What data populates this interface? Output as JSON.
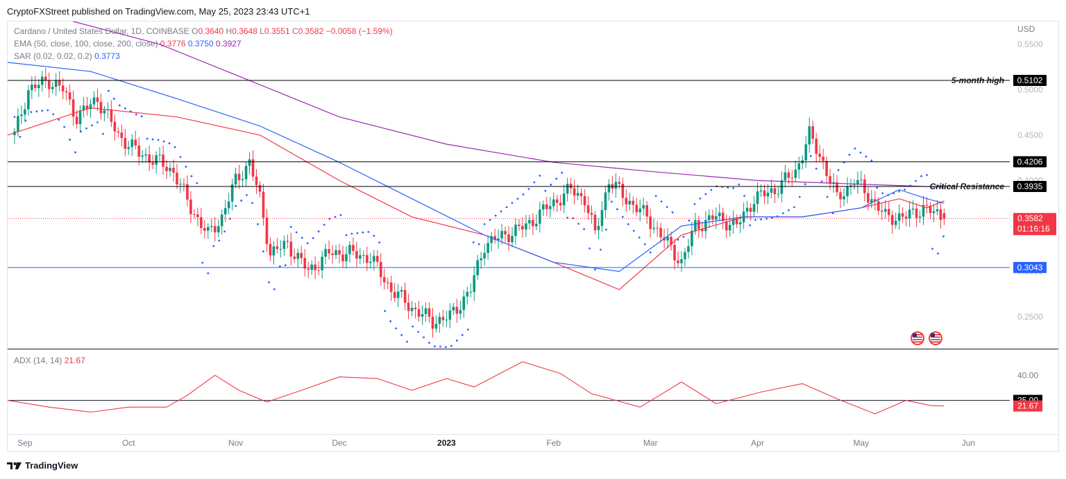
{
  "publisher_line": "CryptoFXStreet published on TradingView.com, May 25, 2023 23:43 UTC+1",
  "symbol": {
    "name": "Cardano / United States Dollar, 1D, COINBASE",
    "open_label": "O",
    "open": "0.3640",
    "high_label": "H",
    "high": "0.3648",
    "low_label": "L",
    "low": "0.3551",
    "close_label": "C",
    "close": "0.3582",
    "change": "−0.0058 (−1.59%)"
  },
  "ema_legend": {
    "label": "EMA (50, close, 100, close, 200, close)",
    "ema50": "0.3776",
    "ema100": "0.3750",
    "ema200": "0.3927"
  },
  "sar_legend": {
    "label": "SAR (0.02, 0.02, 0.2)",
    "value": "0.3773"
  },
  "adx_legend": {
    "label": "ADX (14, 14)",
    "value": "21.67"
  },
  "branding": "TradingView",
  "colors": {
    "bull": "#089981",
    "bear": "#f23645",
    "ema50": "#f23645",
    "ema100": "#2962ff",
    "ema200": "#9c27b0",
    "sar": "#2962ff",
    "support": "#2962ff",
    "adx": "#f23645"
  },
  "chart_data": [
    {
      "type": "candlestick",
      "title": "Cardano / United States Dollar, 1D, COINBASE",
      "currency_label": "USD",
      "y_ticks": [
        "0.5500",
        "0.5000",
        "0.4500",
        "0.4000",
        "0.3500",
        "0.3000",
        "0.2500"
      ],
      "ylim": [
        0.215,
        0.575
      ],
      "x_ticks": [
        "Sep",
        "Oct",
        "Nov",
        "Dec",
        "2023",
        "Feb",
        "Mar",
        "Apr",
        "May",
        "Jun"
      ],
      "x_range": [
        "2022-08-27",
        "2023-06-13"
      ],
      "horizontal_levels": [
        {
          "value": 0.5102,
          "label": "0.5102",
          "annotation": "5-month high",
          "color": "#000000"
        },
        {
          "value": 0.4206,
          "label": "0.4206",
          "annotation": "",
          "color": "#000000"
        },
        {
          "value": 0.3935,
          "label": "0.3935",
          "annotation": "Critical Resistance",
          "color": "#000000"
        },
        {
          "value": 0.3043,
          "label": "0.3043",
          "annotation": "",
          "color": "#2962ff"
        }
      ],
      "last_price": {
        "value": 0.3582,
        "label": "0.3582",
        "countdown": "01:16:16"
      },
      "close_path": [
        [
          "2022-08-29",
          0.45
        ],
        [
          "2022-09-02",
          0.5
        ],
        [
          "2022-09-08",
          0.51
        ],
        [
          "2022-09-12",
          0.5
        ],
        [
          "2022-09-16",
          0.47
        ],
        [
          "2022-09-22",
          0.49
        ],
        [
          "2022-09-28",
          0.45
        ],
        [
          "2022-10-04",
          0.43
        ],
        [
          "2022-10-10",
          0.42
        ],
        [
          "2022-10-14",
          0.41
        ],
        [
          "2022-10-19",
          0.37
        ],
        [
          "2022-10-24",
          0.34
        ],
        [
          "2022-10-28",
          0.36
        ],
        [
          "2022-11-01",
          0.4
        ],
        [
          "2022-11-05",
          0.42
        ],
        [
          "2022-11-08",
          0.38
        ],
        [
          "2022-11-11",
          0.32
        ],
        [
          "2022-11-16",
          0.33
        ],
        [
          "2022-11-22",
          0.3
        ],
        [
          "2022-11-28",
          0.32
        ],
        [
          "2022-12-04",
          0.32
        ],
        [
          "2022-12-10",
          0.315
        ],
        [
          "2022-12-16",
          0.28
        ],
        [
          "2022-12-22",
          0.26
        ],
        [
          "2022-12-28",
          0.245
        ],
        [
          "2023-01-02",
          0.25
        ],
        [
          "2023-01-08",
          0.28
        ],
        [
          "2023-01-12",
          0.33
        ],
        [
          "2023-01-18",
          0.34
        ],
        [
          "2023-01-24",
          0.35
        ],
        [
          "2023-01-30",
          0.37
        ],
        [
          "2023-02-06",
          0.39
        ],
        [
          "2023-02-10",
          0.38
        ],
        [
          "2023-02-13",
          0.34
        ],
        [
          "2023-02-17",
          0.4
        ],
        [
          "2023-02-22",
          0.38
        ],
        [
          "2023-02-28",
          0.36
        ],
        [
          "2023-03-04",
          0.34
        ],
        [
          "2023-03-10",
          0.31
        ],
        [
          "2023-03-14",
          0.35
        ],
        [
          "2023-03-20",
          0.36
        ],
        [
          "2023-03-26",
          0.35
        ],
        [
          "2023-03-31",
          0.38
        ],
        [
          "2023-04-06",
          0.39
        ],
        [
          "2023-04-12",
          0.41
        ],
        [
          "2023-04-16",
          0.45
        ],
        [
          "2023-04-20",
          0.42
        ],
        [
          "2023-04-24",
          0.38
        ],
        [
          "2023-04-29",
          0.4
        ],
        [
          "2023-05-04",
          0.38
        ],
        [
          "2023-05-08",
          0.36
        ],
        [
          "2023-05-14",
          0.36
        ],
        [
          "2023-05-19",
          0.37
        ],
        [
          "2023-05-25",
          0.3582
        ]
      ],
      "series": [
        {
          "name": "EMA 50",
          "values": [
            [
              0.45,
              0.48,
              0.47,
              0.45,
              0.4,
              0.36,
              0.34,
              0.31,
              0.28,
              0.34,
              0.36,
              0.36,
              0.37,
              0.38,
              0.37,
              0.3776
            ]
          ]
        },
        {
          "name": "EMA 100",
          "values": [
            [
              0.53,
              0.52,
              0.49,
              0.46,
              0.42,
              0.38,
              0.34,
              0.31,
              0.3,
              0.35,
              0.36,
              0.36,
              0.37,
              0.39,
              0.38,
              0.375
            ]
          ]
        },
        {
          "name": "EMA 200",
          "values": [
            [
              0.58,
              0.55,
              0.51,
              0.47,
              0.44,
              0.42,
              0.41,
              0.4,
              0.3927
            ]
          ]
        }
      ],
      "ema_dates": [
        "2022-08-27",
        "2022-09-20",
        "2022-10-15",
        "2022-11-08",
        "2022-12-01",
        "2022-12-22",
        "2023-01-12",
        "2023-02-01",
        "2023-02-20",
        "2023-03-10",
        "2023-03-28",
        "2023-04-14",
        "2023-05-01",
        "2023-05-12",
        "2023-05-20",
        "2023-05-25"
      ]
    },
    {
      "type": "line",
      "title": "ADX (14, 14)",
      "y_ticks": [
        "40.00"
      ],
      "ylim": [
        5,
        55
      ],
      "horizontal_levels": [
        {
          "value": 25.0,
          "label": "25.00"
        }
      ],
      "last_value": {
        "value": 21.67,
        "label": "21.67"
      },
      "points": [
        [
          "2022-08-27",
          25
        ],
        [
          "2022-09-08",
          21
        ],
        [
          "2022-09-20",
          18
        ],
        [
          "2022-10-01",
          21
        ],
        [
          "2022-10-12",
          21
        ],
        [
          "2022-10-18",
          28
        ],
        [
          "2022-10-26",
          40
        ],
        [
          "2022-11-02",
          31
        ],
        [
          "2022-11-10",
          24
        ],
        [
          "2022-11-20",
          31
        ],
        [
          "2022-12-01",
          39
        ],
        [
          "2022-12-12",
          38
        ],
        [
          "2022-12-22",
          31
        ],
        [
          "2023-01-01",
          38
        ],
        [
          "2023-01-09",
          33
        ],
        [
          "2023-01-23",
          48
        ],
        [
          "2023-02-03",
          41
        ],
        [
          "2023-02-12",
          29
        ],
        [
          "2023-02-26",
          21
        ],
        [
          "2023-03-10",
          36
        ],
        [
          "2023-03-20",
          23
        ],
        [
          "2023-04-02",
          30
        ],
        [
          "2023-04-14",
          35
        ],
        [
          "2023-04-24",
          26
        ],
        [
          "2023-05-05",
          17
        ],
        [
          "2023-05-14",
          25
        ],
        [
          "2023-05-21",
          22
        ],
        [
          "2023-05-25",
          21.67
        ]
      ]
    }
  ]
}
